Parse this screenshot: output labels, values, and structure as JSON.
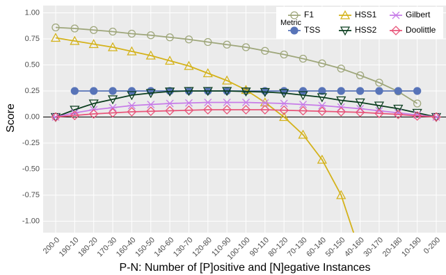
{
  "chart_data": {
    "type": "line",
    "ylabel": "Score",
    "xlabel": "P-N: Number of [P]ositive and [N]egative Instances",
    "legend_title": "Metric",
    "legend_position": "top-right",
    "grid": true,
    "hline": 0,
    "categories": [
      "200-0",
      "190-10",
      "180-20",
      "170-30",
      "160-40",
      "150-50",
      "140-60",
      "130-70",
      "120-80",
      "110-90",
      "100-100",
      "90-110",
      "80-120",
      "70-130",
      "60-140",
      "50-150",
      "40-160",
      "30-170",
      "20-180",
      "10-190",
      "0-200"
    ],
    "ylim": [
      -1.11,
      1.07
    ],
    "yticks": [
      {
        "value": 1,
        "label": "1.00"
      },
      {
        "value": 0.75,
        "label": "0.75"
      },
      {
        "value": 0.5,
        "label": "0.50"
      },
      {
        "value": 0.25,
        "label": "0.25"
      },
      {
        "value": 0,
        "label": "0.00"
      },
      {
        "value": -0.25,
        "label": "-0.25"
      },
      {
        "value": -0.5,
        "label": "-0.50"
      },
      {
        "value": -0.75,
        "label": "-0.75"
      },
      {
        "value": -1,
        "label": "-1.00"
      }
    ],
    "series": [
      {
        "name": "F1",
        "color": "#9ea67a",
        "shape": "circle-open",
        "values": [
          0.86,
          0.85,
          0.835,
          0.82,
          0.8,
          0.785,
          0.765,
          0.745,
          0.72,
          0.695,
          0.67,
          0.635,
          0.6,
          0.56,
          0.515,
          0.465,
          0.4,
          0.33,
          0.245,
          0.13,
          null
        ]
      },
      {
        "name": "TSS",
        "color": "#5874b8",
        "shape": "circle",
        "values": [
          null,
          0.25,
          0.25,
          0.25,
          0.25,
          0.25,
          0.25,
          0.25,
          0.25,
          0.25,
          0.25,
          0.25,
          0.25,
          0.25,
          0.25,
          0.25,
          0.25,
          0.25,
          0.25,
          0.25,
          null
        ]
      },
      {
        "name": "HSS1",
        "color": "#d4b21a",
        "shape": "triangle",
        "values": [
          0.76,
          0.73,
          0.7,
          0.67,
          0.63,
          0.59,
          0.54,
          0.49,
          0.42,
          0.35,
          0.26,
          0.14,
          0,
          -0.17,
          -0.41,
          -0.75,
          -1.3,
          null,
          null,
          null,
          null
        ]
      },
      {
        "name": "HSS2",
        "color": "#0a3d1e",
        "shape": "triangle-down",
        "values": [
          0,
          0.07,
          0.13,
          0.17,
          0.21,
          0.23,
          0.245,
          0.25,
          0.25,
          0.25,
          0.245,
          0.24,
          0.23,
          0.21,
          0.19,
          0.16,
          0.14,
          0.11,
          0.08,
          0.04,
          0
        ]
      },
      {
        "name": "Gilbert",
        "color": "#c77ce8",
        "shape": "star",
        "values": [
          0,
          0.04,
          0.07,
          0.09,
          0.11,
          0.12,
          0.13,
          0.135,
          0.14,
          0.14,
          0.14,
          0.135,
          0.13,
          0.12,
          0.11,
          0.095,
          0.08,
          0.06,
          0.04,
          0.02,
          0
        ]
      },
      {
        "name": "Doolittle",
        "color": "#e8557a",
        "shape": "diamond",
        "values": [
          0,
          0.015,
          0.03,
          0.04,
          0.05,
          0.055,
          0.06,
          0.065,
          0.07,
          0.07,
          0.07,
          0.07,
          0.065,
          0.06,
          0.055,
          0.05,
          0.045,
          0.035,
          0.025,
          0.01,
          0
        ]
      }
    ]
  }
}
